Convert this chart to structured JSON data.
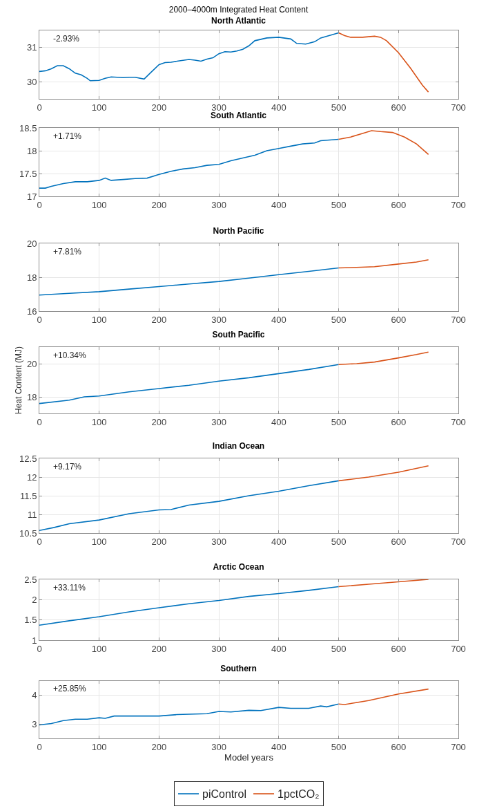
{
  "chart_data": [
    {
      "type": "line",
      "title": "2000–4000m Integrated Heat Content",
      "subtitle": "North Atlantic",
      "annotations": [
        "-2.93%"
      ],
      "xlim": [
        0,
        700
      ],
      "xticks": [
        0,
        100,
        200,
        300,
        400,
        500,
        600,
        700
      ],
      "ylim": [
        29.5,
        31.5
      ],
      "yticks": [
        30,
        31
      ],
      "grid": true,
      "line_style": "solid",
      "series": [
        {
          "color": "#0072bd",
          "x": [
            0,
            10,
            20,
            30,
            40,
            50,
            60,
            70,
            80,
            85,
            100,
            110,
            120,
            140,
            150,
            160,
            175,
            185,
            200,
            210,
            220,
            230,
            250,
            260,
            270,
            280,
            290,
            300,
            310,
            320,
            330,
            340,
            350,
            360,
            380,
            400,
            420,
            430,
            445,
            460,
            470,
            480,
            500
          ],
          "values": [
            30.3,
            30.32,
            30.38,
            30.47,
            30.47,
            30.38,
            30.25,
            30.2,
            30.1,
            30.03,
            30.04,
            30.1,
            30.14,
            30.12,
            30.13,
            30.13,
            30.08,
            30.25,
            30.5,
            30.56,
            30.57,
            30.6,
            30.65,
            30.63,
            30.6,
            30.66,
            30.7,
            30.82,
            30.88,
            30.87,
            30.9,
            30.95,
            31.05,
            31.2,
            31.28,
            31.3,
            31.25,
            31.12,
            31.1,
            31.17,
            31.28,
            31.33,
            31.43
          ]
        },
        {
          "color": "#d95319",
          "x": [
            500,
            510,
            520,
            540,
            560,
            570,
            580,
            600,
            620,
            640,
            650
          ],
          "values": [
            31.43,
            31.35,
            31.3,
            31.3,
            31.33,
            31.3,
            31.2,
            30.85,
            30.4,
            29.9,
            29.7
          ]
        }
      ]
    },
    {
      "type": "line",
      "title": "South Atlantic",
      "annotations": [
        "+1.71%"
      ],
      "xlim": [
        0,
        700
      ],
      "xticks": [
        0,
        100,
        200,
        300,
        400,
        500,
        600,
        700
      ],
      "ylim": [
        17,
        18.5
      ],
      "yticks": [
        17,
        17.5,
        18,
        18.5
      ],
      "grid": true,
      "line_style": "solid",
      "series": [
        {
          "color": "#0072bd",
          "x": [
            0,
            10,
            20,
            40,
            60,
            80,
            100,
            110,
            120,
            140,
            160,
            180,
            200,
            220,
            240,
            260,
            280,
            300,
            320,
            340,
            360,
            380,
            400,
            420,
            440,
            460,
            470,
            500
          ],
          "values": [
            17.18,
            17.18,
            17.22,
            17.28,
            17.32,
            17.32,
            17.35,
            17.4,
            17.35,
            17.37,
            17.39,
            17.4,
            17.48,
            17.55,
            17.6,
            17.63,
            17.68,
            17.7,
            17.78,
            17.84,
            17.9,
            18.0,
            18.05,
            18.1,
            18.15,
            18.17,
            18.22,
            18.25
          ]
        },
        {
          "color": "#d95319",
          "x": [
            500,
            520,
            540,
            555,
            570,
            590,
            610,
            630,
            650
          ],
          "values": [
            18.25,
            18.3,
            18.38,
            18.44,
            18.42,
            18.4,
            18.3,
            18.15,
            17.92
          ]
        }
      ]
    },
    {
      "type": "line",
      "title": "North Pacific",
      "annotations": [
        "+7.81%"
      ],
      "xlim": [
        0,
        700
      ],
      "xticks": [
        0,
        100,
        200,
        300,
        400,
        500,
        600,
        700
      ],
      "ylim": [
        16,
        20
      ],
      "yticks": [
        16,
        18,
        20
      ],
      "grid": true,
      "line_style": "solid",
      "series": [
        {
          "color": "#0072bd",
          "x": [
            0,
            50,
            100,
            150,
            200,
            250,
            300,
            350,
            400,
            450,
            500
          ],
          "values": [
            16.95,
            17.05,
            17.15,
            17.3,
            17.45,
            17.6,
            17.75,
            17.95,
            18.15,
            18.35,
            18.55
          ]
        },
        {
          "color": "#d95319",
          "x": [
            500,
            530,
            560,
            600,
            630,
            650
          ],
          "values": [
            18.55,
            18.58,
            18.62,
            18.78,
            18.9,
            19.03
          ]
        }
      ]
    },
    {
      "type": "line",
      "title": "South Pacific",
      "ylabel": "Heat Content (MJ)",
      "annotations": [
        "+10.34%"
      ],
      "xlim": [
        0,
        700
      ],
      "xticks": [
        0,
        100,
        200,
        300,
        400,
        500,
        600,
        700
      ],
      "ylim": [
        17,
        21
      ],
      "yticks": [
        18,
        20
      ],
      "grid": true,
      "line_style": "solid",
      "series": [
        {
          "color": "#0072bd",
          "x": [
            0,
            50,
            75,
            100,
            150,
            200,
            250,
            300,
            350,
            400,
            450,
            500
          ],
          "values": [
            17.6,
            17.8,
            18.0,
            18.05,
            18.3,
            18.5,
            18.7,
            18.95,
            19.15,
            19.4,
            19.65,
            19.95
          ]
        },
        {
          "color": "#d95319",
          "x": [
            500,
            530,
            560,
            600,
            630,
            650
          ],
          "values": [
            19.95,
            20.0,
            20.1,
            20.35,
            20.55,
            20.7
          ]
        }
      ]
    },
    {
      "type": "line",
      "title": "Indian Ocean",
      "annotations": [
        "+9.17%"
      ],
      "xlim": [
        0,
        700
      ],
      "xticks": [
        0,
        100,
        200,
        300,
        400,
        500,
        600,
        700
      ],
      "ylim": [
        10.5,
        12.5
      ],
      "yticks": [
        10.5,
        11,
        11.5,
        12,
        12.5
      ],
      "grid": true,
      "line_style": "solid",
      "series": [
        {
          "color": "#0072bd",
          "x": [
            0,
            25,
            50,
            100,
            150,
            200,
            220,
            250,
            300,
            350,
            400,
            450,
            500
          ],
          "values": [
            10.57,
            10.65,
            10.75,
            10.85,
            11.02,
            11.12,
            11.13,
            11.25,
            11.35,
            11.5,
            11.62,
            11.77,
            11.9
          ]
        },
        {
          "color": "#d95319",
          "x": [
            500,
            550,
            600,
            650
          ],
          "values": [
            11.9,
            12.0,
            12.13,
            12.3
          ]
        }
      ]
    },
    {
      "type": "line",
      "title": "Arctic Ocean",
      "annotations": [
        "+33.11%"
      ],
      "xlim": [
        0,
        700
      ],
      "xticks": [
        0,
        100,
        200,
        300,
        400,
        500,
        600,
        700
      ],
      "ylim": [
        1,
        2.5
      ],
      "yticks": [
        1,
        1.5,
        2,
        2.5
      ],
      "grid": true,
      "line_style": "solid",
      "series": [
        {
          "color": "#0072bd",
          "x": [
            0,
            50,
            100,
            150,
            200,
            250,
            300,
            350,
            400,
            450,
            500
          ],
          "values": [
            1.37,
            1.48,
            1.58,
            1.7,
            1.8,
            1.9,
            1.98,
            2.08,
            2.15,
            2.23,
            2.32
          ]
        },
        {
          "color": "#d95319",
          "x": [
            500,
            550,
            600,
            650
          ],
          "values": [
            2.32,
            2.38,
            2.44,
            2.5
          ]
        }
      ]
    },
    {
      "type": "line",
      "title": "Southern",
      "xlabel": "Model years",
      "annotations": [
        "+25.85%"
      ],
      "xlim": [
        0,
        700
      ],
      "xticks": [
        0,
        100,
        200,
        300,
        400,
        500,
        600,
        700
      ],
      "ylim": [
        2.5,
        4.5
      ],
      "yticks": [
        3,
        4
      ],
      "grid": true,
      "line_style": "solid",
      "legend": "bottom",
      "series": [
        {
          "name": "piControl",
          "color": "#0072bd",
          "x": [
            0,
            20,
            40,
            60,
            80,
            100,
            110,
            125,
            150,
            200,
            230,
            280,
            300,
            320,
            350,
            370,
            400,
            420,
            450,
            470,
            480,
            500
          ],
          "values": [
            2.97,
            3.02,
            3.12,
            3.17,
            3.17,
            3.22,
            3.2,
            3.28,
            3.28,
            3.28,
            3.33,
            3.36,
            3.44,
            3.42,
            3.48,
            3.47,
            3.58,
            3.55,
            3.55,
            3.63,
            3.6,
            3.7
          ]
        },
        {
          "name": "1pctCO₂",
          "color": "#d95319",
          "x": [
            500,
            510,
            550,
            600,
            650
          ],
          "values": [
            3.7,
            3.68,
            3.82,
            4.05,
            4.22
          ]
        }
      ]
    }
  ]
}
